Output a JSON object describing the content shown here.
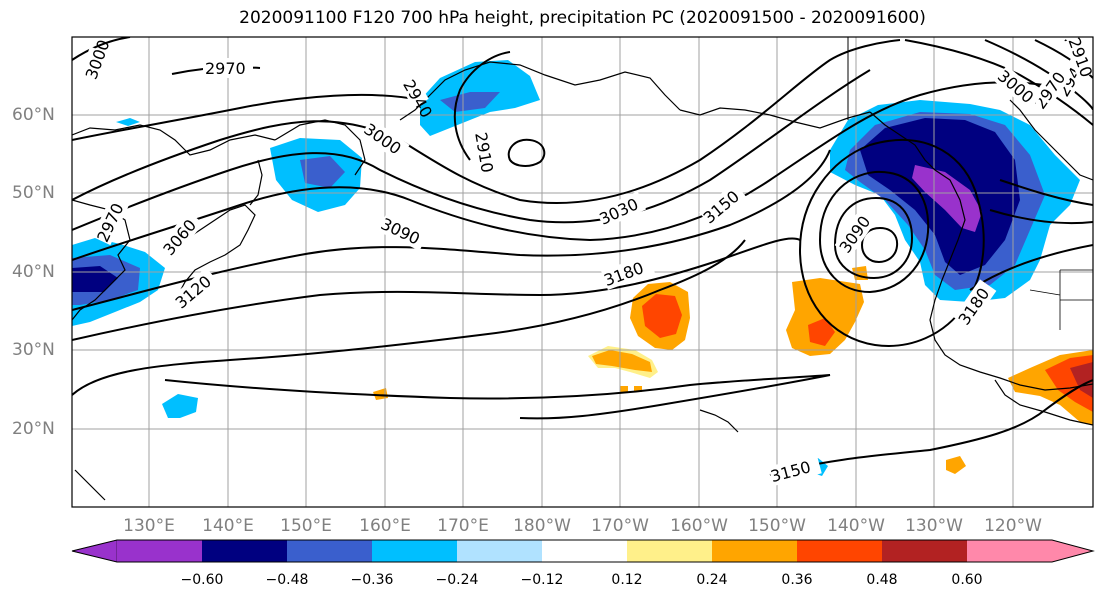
{
  "title": "2020091100 F120 700 hPa height, precipitation PC (2020091500 - 2020091600)",
  "lat_labels": [
    "60°N",
    "50°N",
    "40°N",
    "30°N",
    "20°N"
  ],
  "lon_labels": [
    "130°E",
    "140°E",
    "150°E",
    "160°E",
    "170°E",
    "180°W",
    "170°W",
    "160°W",
    "150°W",
    "140°W",
    "130°W",
    "120°W"
  ],
  "contour_labels": [
    "3000",
    "2970",
    "2940",
    "3000",
    "2910",
    "2970",
    "3060",
    "3120",
    "3090",
    "3030",
    "3150",
    "3180",
    "3090",
    "3180",
    "3150",
    "2940",
    "2910",
    "2970",
    "3000"
  ],
  "colorbar": {
    "tick_labels": [
      "−0.60",
      "−0.48",
      "−0.36",
      "−0.24",
      "−0.12",
      "0.12",
      "0.24",
      "0.36",
      "0.48",
      "0.60"
    ],
    "colors": [
      "#9932cc",
      "#000080",
      "#3a5fcd",
      "#00bfff",
      "#b0e2ff",
      "#ffffff",
      "#fff08a",
      "#ffa500",
      "#ff4500",
      "#b22222",
      "#ff88aa"
    ]
  },
  "colors": {
    "land_outline": "#000000",
    "grid": "#a0a0a0",
    "contour": "#000000"
  }
}
